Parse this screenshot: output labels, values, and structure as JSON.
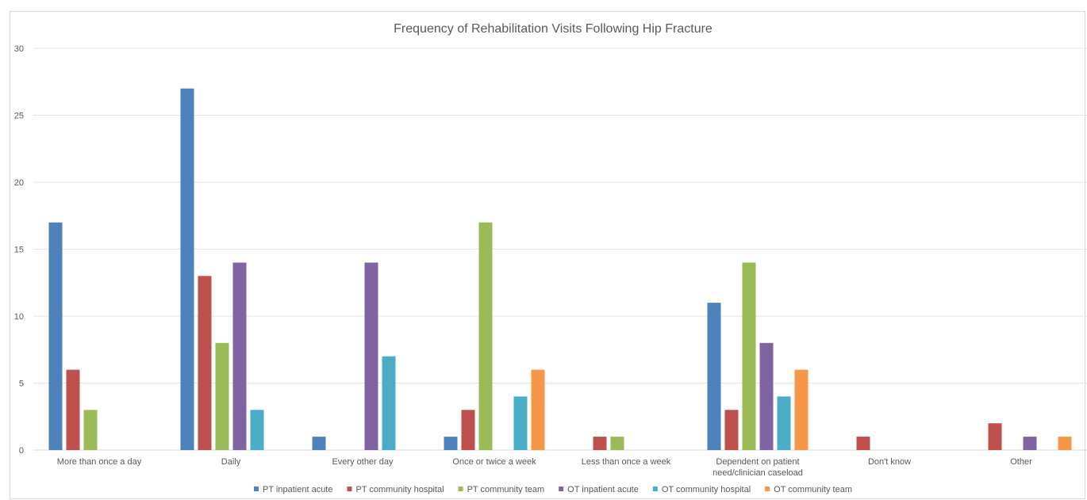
{
  "chart_data": {
    "type": "bar",
    "title": "Frequency of Rehabilitation Visits Following Hip Fracture",
    "xlabel": "",
    "ylabel": "",
    "ylim": [
      0,
      30
    ],
    "yticks": [
      "0",
      "5",
      "10",
      "15",
      "20",
      "25",
      "30"
    ],
    "grid": true,
    "legend_position": "bottom",
    "categories": [
      [
        "More than once a day"
      ],
      [
        "Daily"
      ],
      [
        "Every other day"
      ],
      [
        "Once or twice a week"
      ],
      [
        "Less than once a week"
      ],
      [
        "Dependent on patient",
        "need/clinician caseload"
      ],
      [
        "Don't know"
      ],
      [
        "Other"
      ]
    ],
    "series": [
      {
        "name": "PT inpatient acute",
        "color": "#4f81bd",
        "values": [
          17,
          27,
          1,
          1,
          0,
          11,
          0,
          0
        ]
      },
      {
        "name": "PT community hospital",
        "color": "#c0504d",
        "values": [
          6,
          13,
          0,
          3,
          1,
          3,
          1,
          2
        ]
      },
      {
        "name": "PT community team",
        "color": "#9bbb59",
        "values": [
          3,
          8,
          0,
          17,
          1,
          14,
          0,
          0
        ]
      },
      {
        "name": "OT inpatient acute",
        "color": "#8064a2",
        "values": [
          0,
          14,
          14,
          0,
          0,
          8,
          0,
          1
        ]
      },
      {
        "name": "OT community hospital",
        "color": "#4bacc6",
        "values": [
          0,
          3,
          7,
          4,
          0,
          4,
          0,
          0
        ]
      },
      {
        "name": "OT community team",
        "color": "#f79646",
        "values": [
          0,
          0,
          0,
          6,
          0,
          6,
          0,
          1
        ]
      }
    ]
  }
}
